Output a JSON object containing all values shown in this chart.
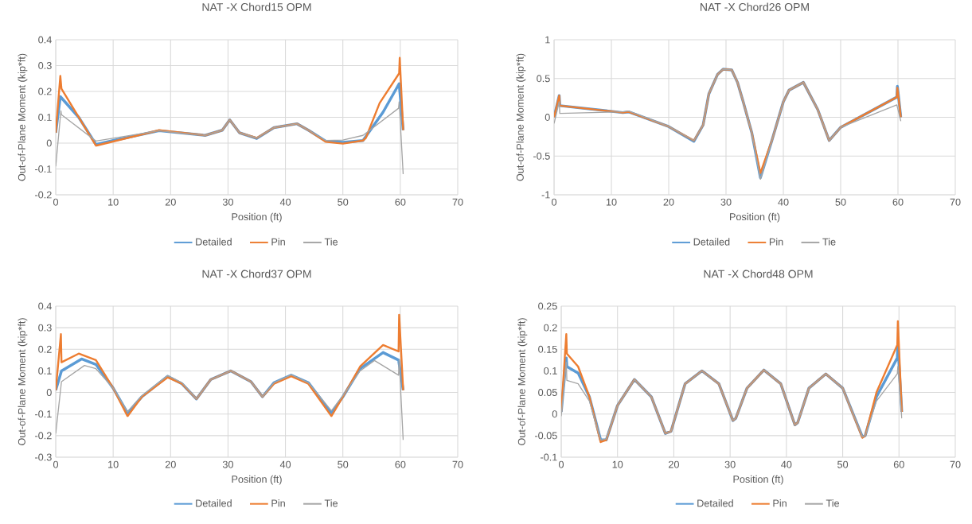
{
  "chart_data": [
    {
      "type": "line",
      "title": "NAT -X Chord15 OPM",
      "xlabel": "Position (ft)",
      "ylabel": "Out-of-Plane Moment (kip*ft)",
      "xlim": [
        0,
        70
      ],
      "xticks": [
        0,
        10,
        20,
        30,
        40,
        50,
        60,
        70
      ],
      "ylim": [
        -0.2,
        0.4
      ],
      "yticks": [
        -0.2,
        -0.1,
        0,
        0.1,
        0.2,
        0.3,
        0.4
      ],
      "grid": true,
      "legend": "bottom",
      "line_style": "solid",
      "series": [
        {
          "name": "Detailed",
          "color": "#5b9bd5",
          "x": [
            0,
            0.8,
            4,
            7,
            10,
            18,
            26,
            29,
            30.3,
            32,
            35,
            38,
            42,
            44,
            47,
            50,
            53.5,
            57,
            59.8,
            60.5
          ],
          "values": [
            0.04,
            0.18,
            0.1,
            -0.005,
            0.01,
            0.048,
            0.03,
            0.05,
            0.09,
            0.04,
            0.018,
            0.06,
            0.075,
            0.05,
            0.008,
            0.003,
            0.01,
            0.12,
            0.23,
            0.05
          ]
        },
        {
          "name": "Pin",
          "color": "#ed7d31",
          "x": [
            0,
            0.8,
            1,
            7,
            18,
            26,
            29,
            30.3,
            32,
            35,
            38,
            42,
            44,
            47,
            50,
            53.5,
            54,
            56.4,
            59.8,
            59.9,
            60.5
          ],
          "values": [
            0.04,
            0.26,
            0.21,
            -0.01,
            0.05,
            0.03,
            0.05,
            0.09,
            0.04,
            0.02,
            0.06,
            0.075,
            0.05,
            0.005,
            -0.002,
            0.01,
            0.02,
            0.155,
            0.27,
            0.33,
            0.05
          ]
        },
        {
          "name": "Tie",
          "color": "#a5a5a5",
          "x": [
            0,
            0.9,
            1,
            7,
            18,
            26,
            29,
            30.3,
            32,
            35,
            38,
            42,
            44,
            47,
            50,
            53.5,
            59.7,
            59.8,
            60.5
          ],
          "values": [
            -0.09,
            0.125,
            0.11,
            0.008,
            0.048,
            0.03,
            0.05,
            0.09,
            0.04,
            0.02,
            0.06,
            0.075,
            0.05,
            0.01,
            0.012,
            0.03,
            0.135,
            0.16,
            -0.12
          ]
        }
      ]
    },
    {
      "type": "line",
      "title": "NAT -X Chord26 OPM",
      "xlabel": "Position (ft)",
      "ylabel": "Out-of-Plane Moment (kip*ft)",
      "xlim": [
        0,
        70
      ],
      "xticks": [
        0,
        10,
        20,
        30,
        40,
        50,
        60,
        70
      ],
      "ylim": [
        -1,
        1
      ],
      "yticks": [
        -1,
        -0.5,
        0,
        0.5,
        1
      ],
      "grid": true,
      "legend": "bottom",
      "line_style": "solid",
      "series": [
        {
          "name": "Detailed",
          "color": "#5b9bd5",
          "x": [
            0,
            0.9,
            1,
            12,
            13,
            20,
            24.4,
            26,
            27,
            28.5,
            29.5,
            31,
            32,
            33,
            34.5,
            36,
            38,
            40,
            41,
            43.5,
            46,
            48,
            50,
            59.8,
            59.9,
            60.5
          ],
          "values": [
            0,
            0.28,
            0.15,
            0.06,
            0.07,
            -0.12,
            -0.31,
            -0.1,
            0.3,
            0.55,
            0.62,
            0.61,
            0.45,
            0.2,
            -0.2,
            -0.78,
            -0.3,
            0.2,
            0.35,
            0.45,
            0.1,
            -0.3,
            -0.13,
            0.26,
            0.4,
            0
          ]
        },
        {
          "name": "Pin",
          "color": "#ed7d31",
          "x": [
            0,
            0.9,
            1,
            12,
            13,
            20,
            24.4,
            26,
            27,
            28.5,
            29.5,
            31,
            32,
            33,
            34.5,
            36,
            38,
            40,
            41,
            43.5,
            46,
            48,
            50,
            59.8,
            59.9,
            60.5
          ],
          "values": [
            0,
            0.28,
            0.15,
            0.06,
            0.07,
            -0.12,
            -0.3,
            -0.1,
            0.3,
            0.55,
            0.62,
            0.61,
            0.45,
            0.2,
            -0.2,
            -0.72,
            -0.3,
            0.2,
            0.35,
            0.45,
            0.1,
            -0.3,
            -0.13,
            0.26,
            0.38,
            0
          ]
        },
        {
          "name": "Tie",
          "color": "#a5a5a5",
          "x": [
            0,
            0.9,
            1,
            12,
            13,
            20,
            24.4,
            26,
            27,
            28.5,
            29.5,
            31,
            32,
            33,
            34.5,
            36,
            38,
            40,
            41,
            43.5,
            46,
            48,
            50,
            59.8,
            60.5
          ],
          "values": [
            -0.08,
            0.2,
            0.05,
            0.07,
            0.08,
            -0.12,
            -0.3,
            -0.1,
            0.3,
            0.55,
            0.62,
            0.61,
            0.45,
            0.2,
            -0.2,
            -0.8,
            -0.3,
            0.2,
            0.35,
            0.45,
            0.1,
            -0.3,
            -0.13,
            0.16,
            -0.05
          ]
        }
      ]
    },
    {
      "type": "line",
      "title": "NAT -X Chord37 OPM",
      "xlabel": "Position (ft)",
      "ylabel": "Out-of-Plane Moment (kip*ft)",
      "xlim": [
        0,
        70
      ],
      "xticks": [
        0,
        10,
        20,
        30,
        40,
        50,
        60,
        70
      ],
      "ylim": [
        -0.3,
        0.4
      ],
      "yticks": [
        -0.3,
        -0.2,
        -0.1,
        0,
        0.1,
        0.2,
        0.3,
        0.4
      ],
      "grid": true,
      "legend": "bottom",
      "line_style": "solid",
      "series": [
        {
          "name": "Detailed",
          "color": "#5b9bd5",
          "x": [
            0,
            1,
            4.5,
            7,
            10,
            12.5,
            15,
            19.5,
            22,
            24.5,
            27,
            30.5,
            34,
            36,
            38,
            41,
            44,
            48,
            50,
            53,
            57,
            59.7,
            60.5
          ],
          "values": [
            0.01,
            0.1,
            0.155,
            0.13,
            0.02,
            -0.095,
            -0.02,
            0.075,
            0.04,
            -0.03,
            0.06,
            0.1,
            0.05,
            -0.02,
            0.045,
            0.08,
            0.045,
            -0.095,
            -0.02,
            0.11,
            0.185,
            0.15,
            0.01
          ]
        },
        {
          "name": "Pin",
          "color": "#ed7d31",
          "x": [
            0,
            0.9,
            1,
            4,
            7,
            10,
            12.5,
            15,
            19.5,
            22,
            24.5,
            27,
            30.5,
            34,
            36,
            38,
            41,
            44,
            48,
            50,
            53,
            57,
            59.7,
            59.8,
            60.5
          ],
          "values": [
            0.01,
            0.27,
            0.14,
            0.18,
            0.15,
            0.02,
            -0.11,
            -0.02,
            0.07,
            0.04,
            -0.03,
            0.06,
            0.1,
            0.05,
            -0.02,
            0.04,
            0.075,
            0.04,
            -0.11,
            -0.02,
            0.12,
            0.22,
            0.19,
            0.36,
            0.01
          ]
        },
        {
          "name": "Tie",
          "color": "#a5a5a5",
          "x": [
            0,
            1,
            5,
            7,
            10,
            12.5,
            15,
            19.5,
            22,
            24.5,
            27,
            30.5,
            34,
            36,
            38,
            41,
            44,
            48,
            50,
            53,
            55.5,
            59.7,
            59.8,
            60.5
          ],
          "values": [
            -0.19,
            0.05,
            0.125,
            0.11,
            0.02,
            -0.09,
            -0.015,
            0.078,
            0.045,
            -0.03,
            0.06,
            0.1,
            0.05,
            -0.02,
            0.045,
            0.082,
            0.045,
            -0.085,
            -0.015,
            0.1,
            0.148,
            0.08,
            0.15,
            -0.22
          ]
        }
      ]
    },
    {
      "type": "line",
      "title": "NAT -X Chord48 OPM",
      "xlabel": "Position (ft)",
      "ylabel": "Out-of-Plane Moment (kip*ft)",
      "xlim": [
        0,
        70
      ],
      "xticks": [
        0,
        10,
        20,
        30,
        40,
        50,
        60,
        70
      ],
      "ylim": [
        -0.1,
        0.25
      ],
      "yticks": [
        -0.1,
        -0.05,
        0,
        0.05,
        0.1,
        0.15,
        0.2,
        0.25
      ],
      "grid": true,
      "legend": "bottom",
      "line_style": "solid",
      "series": [
        {
          "name": "Detailed",
          "color": "#5b9bd5",
          "x": [
            0,
            0.9,
            1,
            3,
            5,
            7,
            8,
            10,
            13,
            16,
            18.5,
            19.5,
            22,
            25,
            28,
            30.5,
            31,
            33,
            36,
            39,
            41.5,
            42,
            44,
            47,
            50,
            53.5,
            54,
            56,
            59.7,
            59.8,
            60.5
          ],
          "values": [
            0.005,
            0.13,
            0.11,
            0.095,
            0.04,
            -0.06,
            -0.06,
            0.02,
            0.08,
            0.04,
            -0.045,
            -0.04,
            0.07,
            0.1,
            0.07,
            -0.015,
            -0.01,
            0.06,
            0.102,
            0.07,
            -0.025,
            -0.02,
            0.06,
            0.093,
            0.06,
            -0.053,
            -0.05,
            0.04,
            0.13,
            0.16,
            0.005
          ]
        },
        {
          "name": "Pin",
          "color": "#ed7d31",
          "x": [
            0,
            0.9,
            1,
            3,
            5,
            7,
            8,
            10,
            13,
            16,
            18.5,
            19.5,
            22,
            25,
            28,
            30.5,
            31,
            33,
            36,
            39,
            41.5,
            42,
            44,
            47,
            50,
            53.5,
            54,
            56,
            59.7,
            59.8,
            60.5
          ],
          "values": [
            0.005,
            0.185,
            0.14,
            0.11,
            0.04,
            -0.065,
            -0.06,
            0.02,
            0.08,
            0.04,
            -0.045,
            -0.04,
            0.07,
            0.1,
            0.07,
            -0.015,
            -0.01,
            0.06,
            0.102,
            0.07,
            -0.025,
            -0.02,
            0.06,
            0.093,
            0.06,
            -0.055,
            -0.05,
            0.05,
            0.16,
            0.215,
            0.005
          ]
        },
        {
          "name": "Tie",
          "color": "#a5a5a5",
          "x": [
            0,
            0.9,
            1,
            3,
            5,
            7,
            8,
            10,
            13,
            16,
            18.5,
            19.5,
            22,
            25,
            28,
            30.5,
            31,
            33,
            36,
            39,
            41.5,
            42,
            44,
            47,
            50,
            53.5,
            54,
            56,
            59.7,
            59.8,
            60.5
          ],
          "values": [
            -0.005,
            0.12,
            0.078,
            0.07,
            0.03,
            -0.06,
            -0.058,
            0.02,
            0.08,
            0.04,
            -0.045,
            -0.04,
            0.07,
            0.1,
            0.07,
            -0.015,
            -0.01,
            0.06,
            0.102,
            0.07,
            -0.025,
            -0.02,
            0.06,
            0.093,
            0.06,
            -0.053,
            -0.05,
            0.03,
            0.093,
            0.11,
            -0.01
          ]
        }
      ]
    }
  ]
}
